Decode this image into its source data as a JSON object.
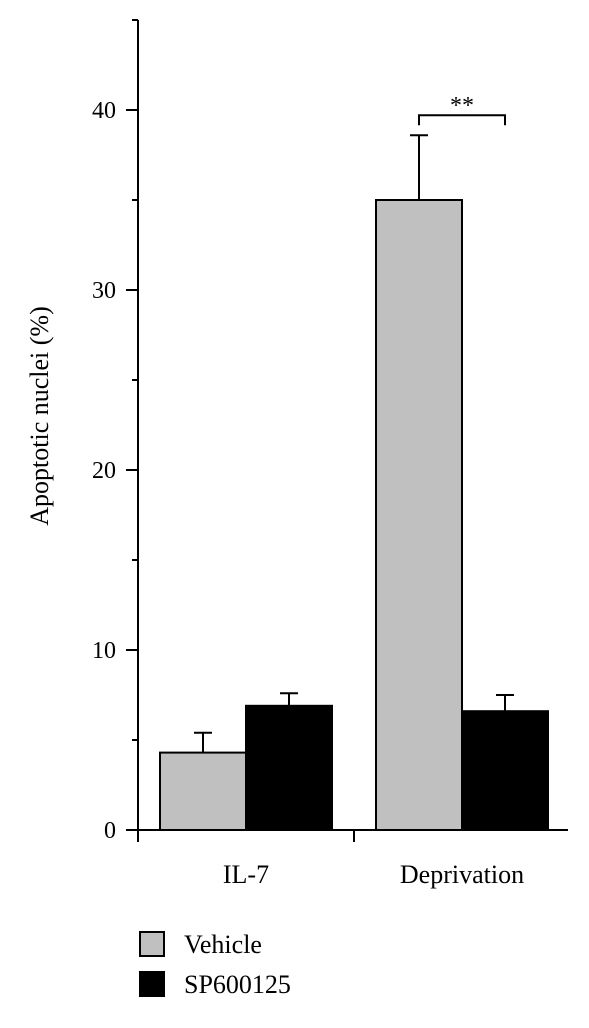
{
  "chart_data": {
    "type": "bar",
    "categories": [
      "IL-7",
      "Deprivation"
    ],
    "series": [
      {
        "name": "Vehicle",
        "values": [
          4.3,
          35.0
        ],
        "errors": [
          1.1,
          3.6
        ],
        "color": "#c0c0c0"
      },
      {
        "name": "SP600125",
        "values": [
          6.9,
          6.6
        ],
        "errors": [
          0.7,
          0.9
        ],
        "color": "#000000"
      }
    ],
    "ylabel": "Apoptotic nuclei (%)",
    "ylim": [
      0,
      45
    ],
    "yticks_major": [
      0,
      10,
      20,
      30,
      40
    ],
    "yticks_minor": [
      5,
      15,
      25,
      35,
      45
    ],
    "legend_position": "bottom-left",
    "annotations": [
      {
        "text": "**",
        "category": "Deprivation",
        "between": [
          "Vehicle",
          "SP600125"
        ]
      }
    ]
  }
}
